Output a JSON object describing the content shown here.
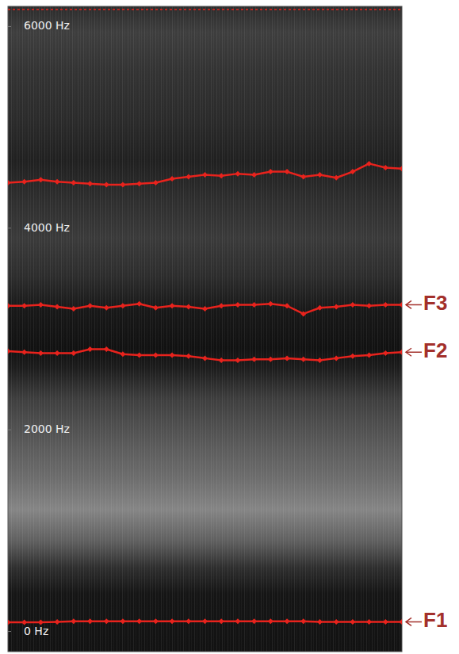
{
  "chart_data": {
    "type": "line",
    "x": [
      0,
      1,
      2,
      3,
      4,
      5,
      6,
      7,
      8,
      9,
      10,
      11,
      12,
      13,
      14,
      15,
      16,
      17,
      18,
      19,
      20,
      21,
      22,
      23,
      24
    ],
    "xlim": [
      0,
      24
    ],
    "ylim": [
      -200,
      6200
    ],
    "yticks": [
      {
        "value": 0,
        "label": "0 Hz"
      },
      {
        "value": 2000,
        "label": "2000 Hz"
      },
      {
        "value": 4000,
        "label": "4000 Hz"
      },
      {
        "value": 6000,
        "label": "6000 Hz"
      }
    ],
    "tick_labels": "y",
    "grid": false,
    "marker": "diamond",
    "line_style": "solid",
    "series": [
      {
        "name": "F1",
        "color": "#e8231d",
        "values": [
          90,
          90,
          90,
          95,
          100,
          100,
          100,
          100,
          100,
          100,
          100,
          100,
          100,
          100,
          100,
          100,
          100,
          100,
          100,
          95,
          95,
          95,
          95,
          95,
          95
        ]
      },
      {
        "name": "F2",
        "color": "#e8231d",
        "values": [
          2780,
          2770,
          2760,
          2760,
          2760,
          2800,
          2800,
          2750,
          2740,
          2740,
          2740,
          2730,
          2710,
          2690,
          2690,
          2700,
          2700,
          2710,
          2700,
          2690,
          2710,
          2730,
          2740,
          2760,
          2770
        ]
      },
      {
        "name": "F3",
        "color": "#e8231d",
        "values": [
          3230,
          3230,
          3240,
          3220,
          3200,
          3230,
          3210,
          3230,
          3250,
          3210,
          3230,
          3220,
          3200,
          3230,
          3240,
          3240,
          3250,
          3230,
          3150,
          3210,
          3220,
          3240,
          3230,
          3240,
          3240
        ]
      },
      {
        "color": "#e8231d",
        "values": [
          4450,
          4460,
          4480,
          4460,
          4450,
          4440,
          4430,
          4430,
          4440,
          4450,
          4490,
          4510,
          4530,
          4520,
          4540,
          4530,
          4560,
          4560,
          4510,
          4530,
          4500,
          4560,
          4640,
          4600,
          4590
        ]
      }
    ]
  }
}
